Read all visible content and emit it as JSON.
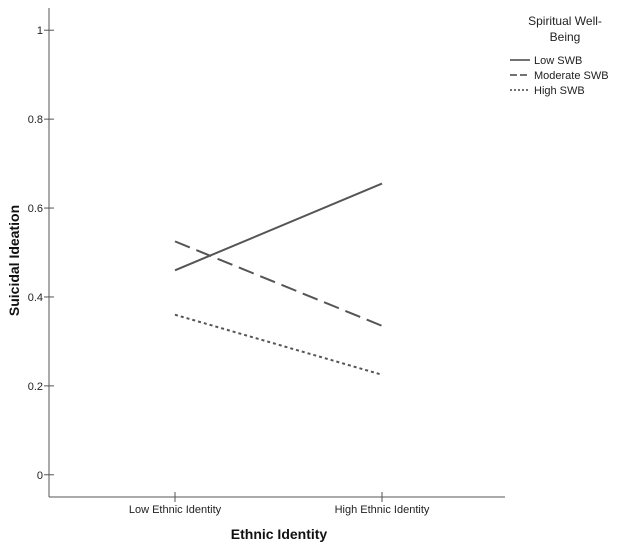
{
  "chart_data": {
    "type": "line",
    "xlabel": "Ethnic Identity",
    "ylabel": "Suicidal Ideation",
    "categories": [
      "Low Ethnic Identity",
      "High Ethnic Identity"
    ],
    "ylim": [
      -0.05,
      1.05
    ],
    "yticks": [
      0,
      0.2,
      0.4,
      0.6,
      0.8,
      1
    ],
    "grid": false,
    "legend": {
      "title": "Spiritual Well-Being",
      "title_lines": [
        "Spiritual Well-",
        "Being"
      ],
      "placement": "top-right"
    },
    "series": [
      {
        "name": "Low SWB",
        "values": [
          0.46,
          0.655
        ],
        "style": "solid",
        "color": "#555555"
      },
      {
        "name": "Moderate SWB",
        "values": [
          0.525,
          0.335
        ],
        "style": "dashed",
        "color": "#555555"
      },
      {
        "name": "High SWB",
        "values": [
          0.36,
          0.225
        ],
        "style": "dotted",
        "color": "#555555"
      }
    ]
  }
}
